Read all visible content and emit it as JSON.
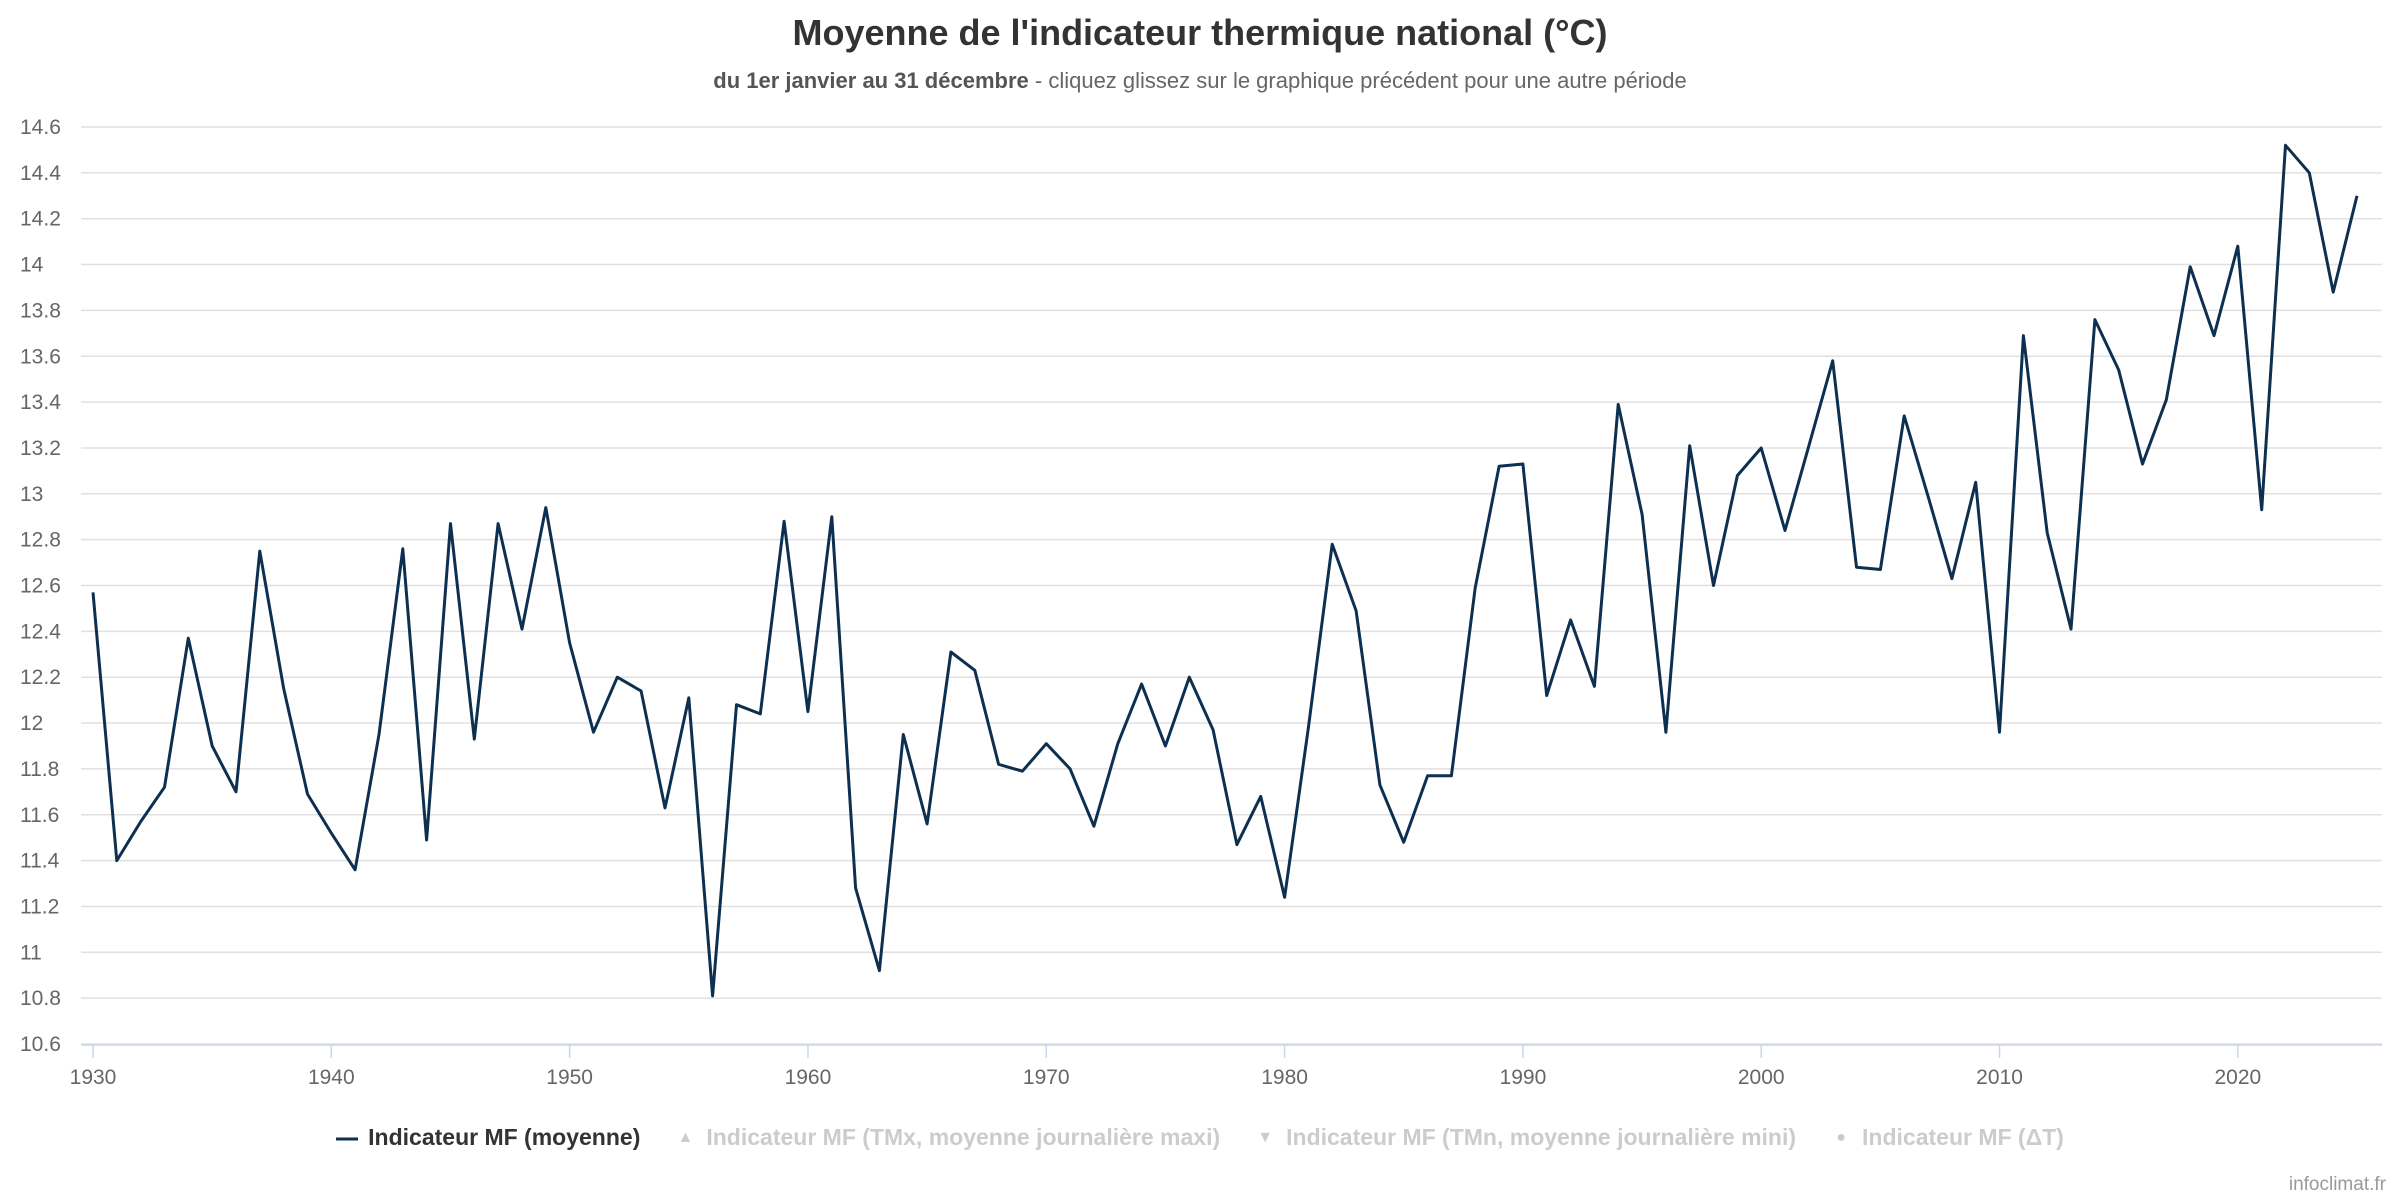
{
  "chart_data": {
    "type": "line",
    "title": "Moyenne de l'indicateur thermique national (°C)",
    "subtitle_bold": "du 1er janvier au 31 décembre",
    "subtitle_rest": " - cliquez glissez sur le graphique précédent pour une autre période",
    "xlabel": "",
    "ylabel": "",
    "xlim": [
      1930,
      2025
    ],
    "ylim": [
      10.6,
      14.6
    ],
    "grid": true,
    "x_ticks": [
      "1930",
      "1940",
      "1950",
      "1960",
      "1970",
      "1980",
      "1990",
      "2000",
      "2010",
      "2020"
    ],
    "y_ticks": [
      "10.6",
      "10.8",
      "11",
      "11.2",
      "11.4",
      "11.6",
      "11.8",
      "12",
      "12.2",
      "12.4",
      "12.6",
      "12.8",
      "13",
      "13.2",
      "13.4",
      "13.6",
      "13.8",
      "14",
      "14.2",
      "14.4",
      "14.6"
    ],
    "legend_position": "bottom",
    "series": [
      {
        "name": "Indicateur MF (moyenne)",
        "color": "#0d3050",
        "visible": true,
        "x_start": 1930,
        "values": [
          12.57,
          11.4,
          11.57,
          11.72,
          12.37,
          11.9,
          11.7,
          12.75,
          12.15,
          11.69,
          11.52,
          11.36,
          11.95,
          12.76,
          11.49,
          12.87,
          11.93,
          12.87,
          12.41,
          12.94,
          12.35,
          11.96,
          12.2,
          12.14,
          11.63,
          12.11,
          10.81,
          12.08,
          12.04,
          12.88,
          12.05,
          12.9,
          11.28,
          10.92,
          11.95,
          11.56,
          12.31,
          12.23,
          11.82,
          11.79,
          11.91,
          11.8,
          11.55,
          11.91,
          12.17,
          11.9,
          12.2,
          11.97,
          11.47,
          11.68,
          11.24,
          11.98,
          12.78,
          12.49,
          11.73,
          11.48,
          11.77,
          11.77,
          12.59,
          13.12,
          13.13,
          12.12,
          12.45,
          12.16,
          13.39,
          12.91,
          11.96,
          13.21,
          12.6,
          13.08,
          13.2,
          12.84,
          13.21,
          13.58,
          12.68,
          12.67,
          13.34,
          12.99,
          12.63,
          13.05,
          11.96,
          13.69,
          12.83,
          12.41,
          13.76,
          13.54,
          13.13,
          13.41,
          13.99,
          13.69,
          14.08,
          12.93,
          14.52,
          14.4,
          13.88,
          14.3
        ]
      },
      {
        "name": "Indicateur MF (TMx, moyenne journalière maxi)",
        "symbol": "▲",
        "visible": false
      },
      {
        "name": "Indicateur MF (TMn, moyenne journalière mini)",
        "symbol": "▼",
        "visible": false
      },
      {
        "name": "Indicateur MF (ΔT)",
        "symbol": "●",
        "visible": false
      }
    ]
  },
  "credits": "infoclimat.fr"
}
